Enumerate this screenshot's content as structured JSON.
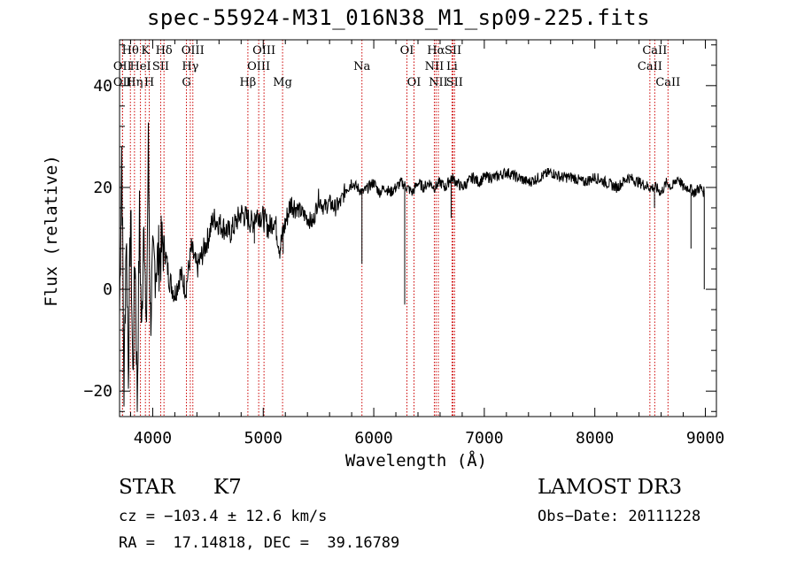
{
  "chart_data": {
    "type": "line",
    "title": "spec-55924-M31_016N38_M1_sp09-225.fits",
    "xlabel": "Wavelength (Å)",
    "ylabel": "Flux (relative)",
    "xlim": [
      3700,
      9100
    ],
    "ylim": [
      -25,
      49
    ],
    "xticks": [
      4000,
      5000,
      6000,
      7000,
      8000,
      9000
    ],
    "xtick_labels": [
      "4000",
      "5000",
      "6000",
      "7000",
      "8000",
      "9000"
    ],
    "yticks": [
      -20,
      0,
      20,
      40
    ],
    "ytick_labels": [
      "−20",
      "0",
      "20",
      "40"
    ],
    "grid": false,
    "series": [
      {
        "name": "flux",
        "x": [
          3700,
          3720,
          3740,
          3760,
          3780,
          3800,
          3820,
          3840,
          3860,
          3880,
          3900,
          3920,
          3940,
          3960,
          3980,
          4000,
          4050,
          4100,
          4150,
          4200,
          4250,
          4300,
          4350,
          4400,
          4450,
          4500,
          4550,
          4600,
          4650,
          4700,
          4750,
          4800,
          4850,
          4900,
          4950,
          5000,
          5050,
          5100,
          5150,
          5200,
          5250,
          5300,
          5350,
          5400,
          5450,
          5500,
          5550,
          5600,
          5650,
          5700,
          5750,
          5800,
          5850,
          5900,
          5950,
          6000,
          6050,
          6100,
          6150,
          6200,
          6250,
          6300,
          6350,
          6400,
          6450,
          6500,
          6550,
          6600,
          6650,
          6700,
          6750,
          6800,
          6850,
          6900,
          6950,
          7000,
          7100,
          7200,
          7300,
          7400,
          7500,
          7600,
          7700,
          7800,
          7900,
          8000,
          8100,
          8200,
          8300,
          8400,
          8500,
          8550,
          8600,
          8650,
          8700,
          8750,
          8800,
          8850,
          8900,
          8950,
          8990
        ],
        "y": [
          -5,
          28,
          -20,
          12,
          -15,
          16,
          -18,
          8,
          -22,
          14,
          -10,
          18,
          -12,
          28,
          -6,
          4,
          6,
          9,
          2,
          -1,
          3,
          0,
          8,
          4,
          7,
          10,
          14,
          13,
          12,
          11,
          13,
          15,
          14,
          13,
          15,
          14,
          12,
          14,
          8,
          13,
          17,
          16,
          15,
          14,
          13,
          18,
          16,
          17,
          16,
          17,
          20,
          21,
          20,
          19,
          20,
          21,
          19,
          20,
          19,
          20,
          21,
          20,
          19,
          21,
          20,
          21,
          20,
          21,
          20,
          22,
          21,
          20,
          21,
          22,
          21,
          22,
          22,
          23,
          22,
          21,
          22,
          23,
          22,
          22,
          21,
          22,
          21,
          20,
          22,
          21,
          20,
          20,
          19,
          21,
          20,
          22,
          20,
          20,
          19,
          20,
          19
        ]
      }
    ],
    "dips": [
      {
        "x": 5893,
        "y": 5
      },
      {
        "x": 6280,
        "y": -3
      },
      {
        "x": 6700,
        "y": 14
      },
      {
        "x": 5180,
        "y": 7
      },
      {
        "x": 4920,
        "y": 9
      },
      {
        "x": 8540,
        "y": 16
      },
      {
        "x": 8870,
        "y": 8
      },
      {
        "x": 8990,
        "y": 0
      }
    ],
    "lines": [
      {
        "label": "Hθ",
        "x": 3798,
        "row": 1
      },
      {
        "label": "OII",
        "x": 3727,
        "row": 2
      },
      {
        "label": "OII",
        "x": 3727,
        "row": 3
      },
      {
        "label": "Hη",
        "x": 3835,
        "row": 3
      },
      {
        "label": "HeI",
        "x": 3889,
        "row": 2
      },
      {
        "label": "K",
        "x": 3934,
        "row": 1
      },
      {
        "label": "H",
        "x": 3969,
        "row": 3
      },
      {
        "label": "SII",
        "x": 4072,
        "row": 2
      },
      {
        "label": "Hδ",
        "x": 4102,
        "row": 1
      },
      {
        "label": "OIII",
        "x": 4363,
        "row": 1
      },
      {
        "label": "Hγ",
        "x": 4340,
        "row": 2
      },
      {
        "label": "G",
        "x": 4305,
        "row": 3
      },
      {
        "label": "OIII",
        "x": 5007,
        "row": 1
      },
      {
        "label": "OIII",
        "x": 4959,
        "row": 2
      },
      {
        "label": "Hβ",
        "x": 4861,
        "row": 3
      },
      {
        "label": "Mg",
        "x": 5175,
        "row": 3
      },
      {
        "label": "Na",
        "x": 5893,
        "row": 2
      },
      {
        "label": "OI",
        "x": 6300,
        "row": 1
      },
      {
        "label": "OI",
        "x": 6364,
        "row": 3
      },
      {
        "label": "Hα",
        "x": 6563,
        "row": 1
      },
      {
        "label": "SII",
        "x": 6717,
        "row": 1
      },
      {
        "label": "NII",
        "x": 6548,
        "row": 2
      },
      {
        "label": "Li",
        "x": 6708,
        "row": 2
      },
      {
        "label": "NII",
        "x": 6584,
        "row": 3
      },
      {
        "label": "SII",
        "x": 6731,
        "row": 3
      },
      {
        "label": "CaII",
        "x": 8542,
        "row": 1
      },
      {
        "label": "CaII",
        "x": 8498,
        "row": 2
      },
      {
        "label": "CaII",
        "x": 8662,
        "row": 3
      }
    ]
  },
  "info": {
    "object_class": "STAR",
    "subclass": "K7",
    "survey": "LAMOST DR3",
    "cz": "cz = −103.4 ± 12.6 km/s",
    "obs_date": "Obs−Date: 20111228",
    "radec": "RA =  17.14818, DEC =  39.16789"
  },
  "colors": {
    "line_marker": "#cc0000",
    "spectrum": "#000000",
    "axes": "#000000"
  }
}
